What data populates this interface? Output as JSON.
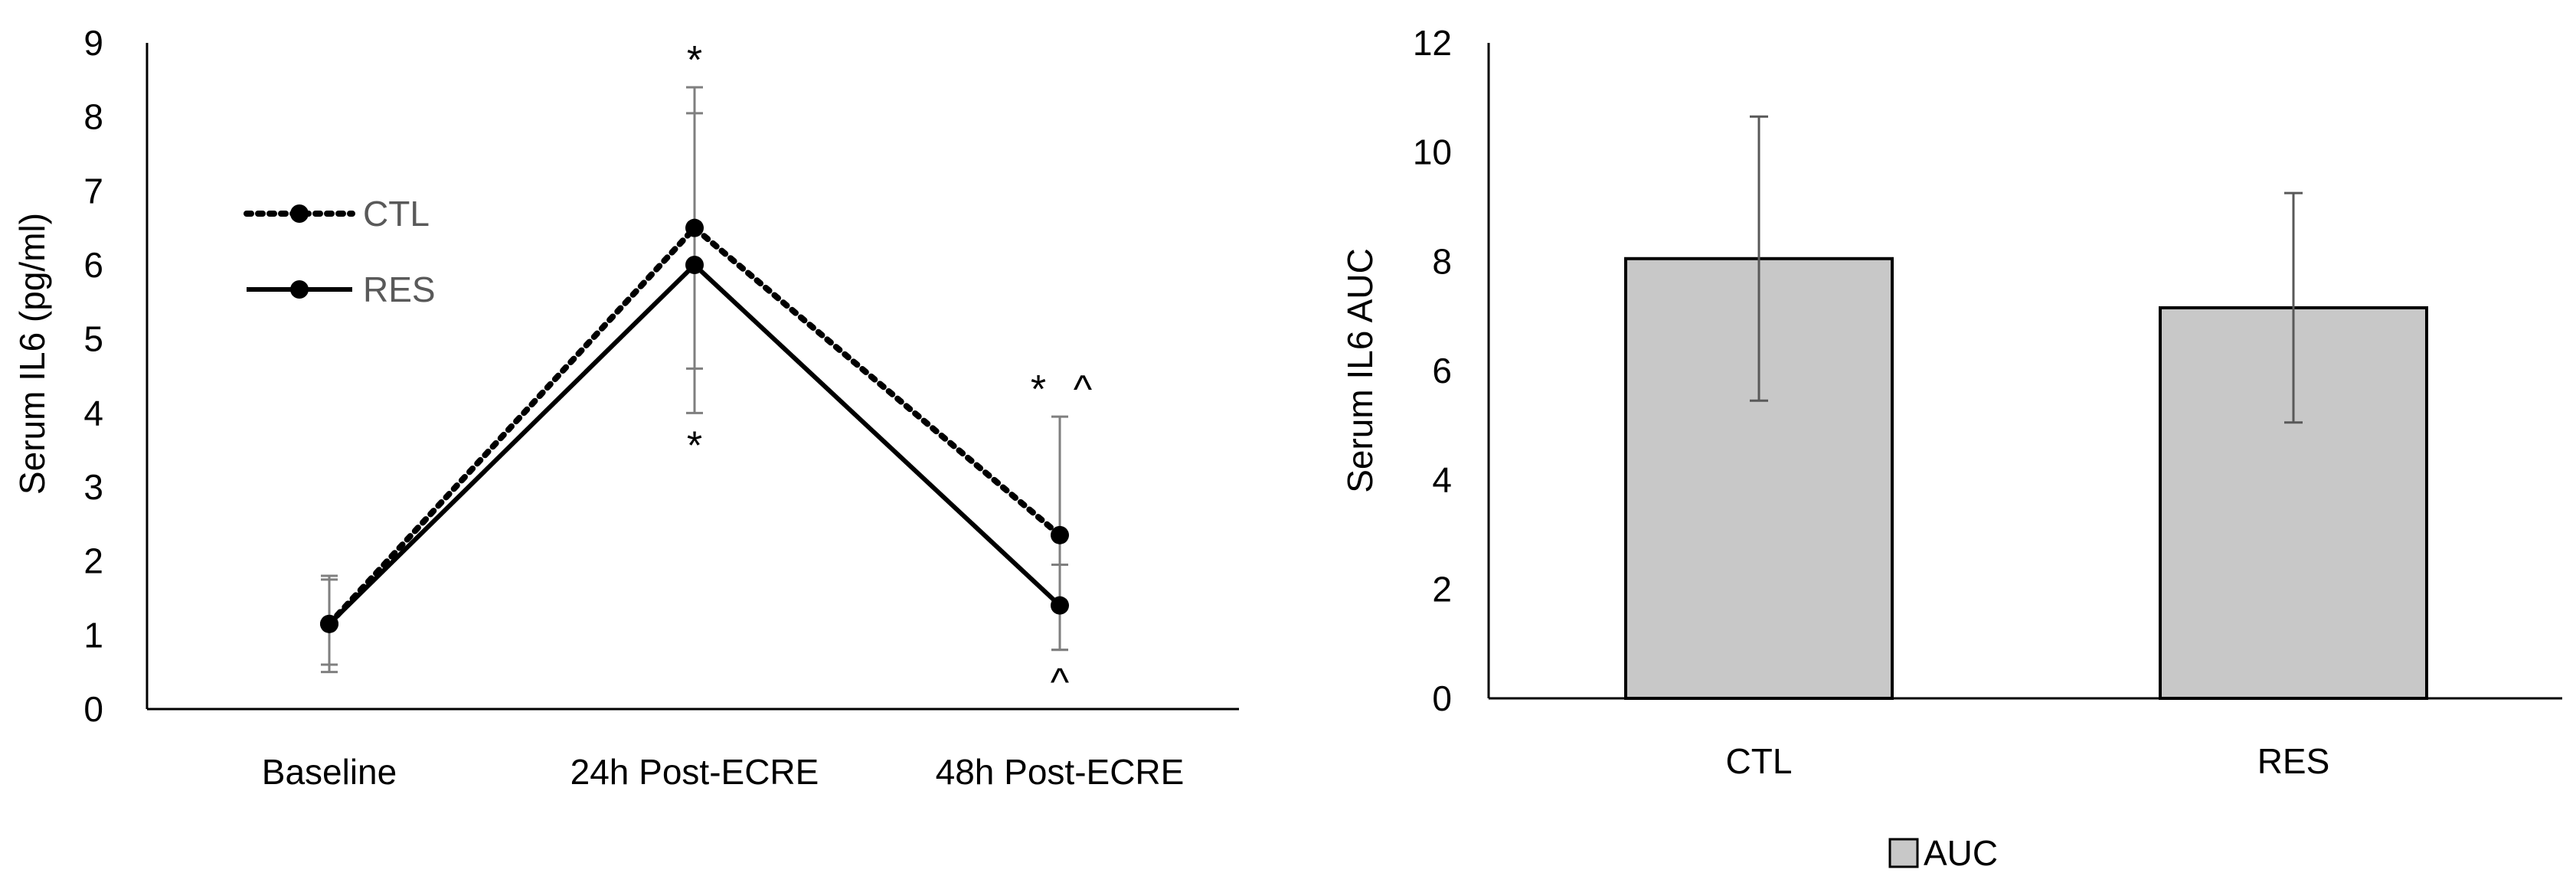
{
  "chart_data": [
    {
      "type": "line",
      "categories": [
        "Baseline",
        "24h Post-ECRE",
        "48h Post-ECRE"
      ],
      "series": [
        {
          "name": "CTL",
          "values": [
            1.15,
            6.5,
            2.35
          ],
          "err_low": [
            0.6,
            4.6,
            0.8
          ],
          "err_high": [
            1.75,
            8.4,
            3.95
          ],
          "line_style": "dotted"
        },
        {
          "name": "RES",
          "values": [
            1.15,
            6.0,
            1.4
          ],
          "err_low": [
            0.5,
            4.0,
            0.8
          ],
          "err_high": [
            1.8,
            8.05,
            1.95
          ],
          "line_style": "solid"
        }
      ],
      "ylabel": "Serum IL6 (pg/ml)",
      "xlabel": "",
      "ylim": [
        0,
        9
      ],
      "yticks": [
        "0",
        "1",
        "2",
        "3",
        "4",
        "5",
        "6",
        "7",
        "8",
        "9"
      ],
      "legend": "upper-left, inside plot",
      "annotations": [
        {
          "text": "*",
          "category": "24h Post-ECRE",
          "position": "above"
        },
        {
          "text": "*",
          "category": "24h Post-ECRE",
          "position": "below"
        },
        {
          "text": "*",
          "category": "48h Post-ECRE",
          "position": "above-left"
        },
        {
          "text": "^",
          "category": "48h Post-ECRE",
          "position": "above-right"
        },
        {
          "text": "^",
          "category": "48h Post-ECRE",
          "position": "below"
        }
      ],
      "grid": false
    },
    {
      "type": "bar",
      "categories": [
        "CTL",
        "RES"
      ],
      "series": [
        {
          "name": "AUC",
          "values": [
            8.05,
            7.15
          ],
          "err_low": [
            5.45,
            5.05
          ],
          "err_high": [
            10.65,
            9.25
          ]
        }
      ],
      "ylabel": "Serum IL6 AUC",
      "xlabel": "",
      "ylim": [
        0,
        12
      ],
      "yticks": [
        "0",
        "2",
        "4",
        "6",
        "8",
        "10",
        "12"
      ],
      "legend": "bottom-center",
      "bar_color": "#c8c8c8",
      "grid": false
    }
  ]
}
